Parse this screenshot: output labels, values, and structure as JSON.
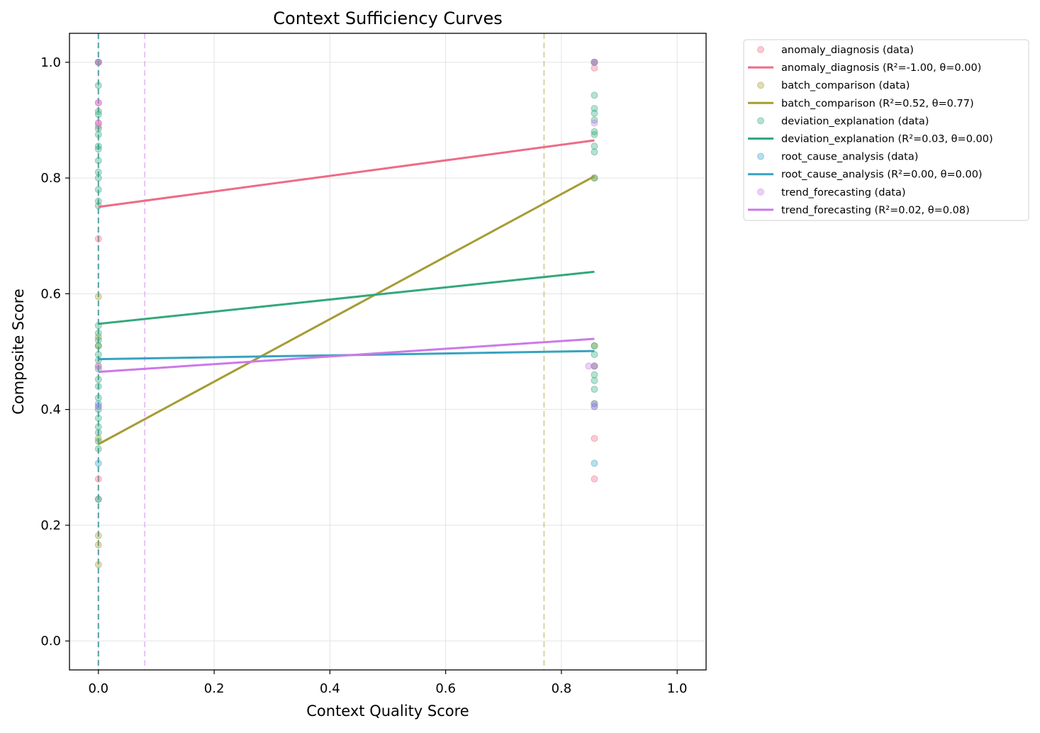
{
  "chart_data": {
    "type": "scatter",
    "title": "Context Sufficiency Curves",
    "xlabel": "Context Quality Score",
    "ylabel": "Composite Score",
    "xlim": [
      -0.05,
      1.05
    ],
    "ylim": [
      -0.05,
      1.05
    ],
    "xticks": [
      0.0,
      0.2,
      0.4,
      0.6,
      0.8,
      1.0
    ],
    "yticks": [
      0.0,
      0.2,
      0.4,
      0.6,
      0.8,
      1.0
    ],
    "xtick_labels": [
      "0.0",
      "0.2",
      "0.4",
      "0.6",
      "0.8",
      "1.0"
    ],
    "ytick_labels": [
      "0.0",
      "0.2",
      "0.4",
      "0.6",
      "0.8",
      "1.0"
    ],
    "grid": true,
    "legend_position": "outside-right-top",
    "series": [
      {
        "name": "anomaly_diagnosis",
        "color": "#ee6b86",
        "data_label": "anomaly_diagnosis (data)",
        "fit_label": "anomaly_diagnosis (R²=-1.00, θ=0.00)",
        "fit": {
          "x": [
            0.0,
            0.857
          ],
          "y": [
            0.75,
            0.865
          ]
        },
        "threshold": 0.0,
        "points": {
          "x": [
            0,
            0,
            0,
            0,
            0,
            0,
            0,
            0.857,
            0.857,
            0.857,
            0.857,
            0.857,
            0.857
          ],
          "y": [
            1.0,
            0.93,
            0.895,
            0.89,
            0.695,
            0.475,
            0.28,
            1.0,
            0.99,
            0.475,
            0.41,
            0.35,
            0.28
          ]
        }
      },
      {
        "name": "batch_comparison",
        "color": "#a69c34",
        "data_label": "batch_comparison (data)",
        "fit_label": "batch_comparison (R²=0.52, θ=0.77)",
        "fit": {
          "x": [
            0.0,
            0.857
          ],
          "y": [
            0.34,
            0.803
          ]
        },
        "threshold": 0.77,
        "points": {
          "x": [
            0,
            0,
            0,
            0,
            0,
            0,
            0,
            0,
            0,
            0.857,
            0.857,
            0.857
          ],
          "y": [
            1.0,
            0.595,
            0.525,
            0.51,
            0.35,
            0.245,
            0.182,
            0.166,
            0.132,
            1.0,
            0.8,
            0.51
          ]
        }
      },
      {
        "name": "deviation_explanation",
        "color": "#32a87a",
        "data_label": "deviation_explanation (data)",
        "fit_label": "deviation_explanation (R²=0.03, θ=0.00)",
        "fit": {
          "x": [
            0.0,
            0.857
          ],
          "y": [
            0.548,
            0.638
          ]
        },
        "threshold": 0.0,
        "points": {
          "x": [
            0,
            0,
            0,
            0,
            0,
            0,
            0,
            0,
            0,
            0,
            0,
            0,
            0,
            0,
            0,
            0,
            0,
            0,
            0,
            0,
            0,
            0,
            0,
            0,
            0,
            0,
            0,
            0,
            0,
            0.857,
            0.857,
            0.857,
            0.857,
            0.857,
            0.857,
            0.857,
            0.857,
            0.857,
            0.857,
            0.857,
            0.857,
            0.857,
            0.857,
            0.857
          ],
          "y": [
            0.96,
            0.915,
            0.91,
            0.885,
            0.875,
            0.855,
            0.85,
            0.83,
            0.81,
            0.8,
            0.78,
            0.76,
            0.752,
            0.545,
            0.532,
            0.52,
            0.51,
            0.495,
            0.485,
            0.47,
            0.452,
            0.44,
            0.42,
            0.4,
            0.385,
            0.37,
            0.36,
            0.345,
            0.332,
            0.943,
            0.92,
            0.912,
            0.9,
            0.88,
            0.875,
            0.855,
            0.845,
            0.8,
            0.51,
            0.495,
            0.475,
            0.46,
            0.45,
            0.435
          ]
        }
      },
      {
        "name": "root_cause_analysis",
        "color": "#36a3c0",
        "data_label": "root_cause_analysis (data)",
        "fit_label": "root_cause_analysis (R²=0.00, θ=0.00)",
        "fit": {
          "x": [
            0.0,
            0.857
          ],
          "y": [
            0.487,
            0.501
          ]
        },
        "threshold": 0.0,
        "points": {
          "x": [
            0,
            0,
            0,
            0,
            0,
            0.857,
            0.857,
            0.857,
            0.857
          ],
          "y": [
            1.0,
            0.41,
            0.405,
            0.307,
            0.245,
            1.0,
            0.41,
            0.405,
            0.307
          ]
        }
      },
      {
        "name": "trend_forecasting",
        "color": "#cc79e8",
        "data_label": "trend_forecasting (data)",
        "fit_label": "trend_forecasting (R²=0.02, θ=0.08)",
        "fit": {
          "x": [
            0.0,
            0.857
          ],
          "y": [
            0.465,
            0.522
          ]
        },
        "threshold": 0.08,
        "points": {
          "x": [
            0,
            0,
            0,
            0,
            0,
            0.857,
            0.847,
            0.857,
            0.857,
            0.857
          ],
          "y": [
            1.0,
            0.93,
            0.895,
            0.475,
            0.405,
            1.0,
            0.475,
            0.475,
            0.895,
            0.405
          ]
        }
      }
    ]
  }
}
